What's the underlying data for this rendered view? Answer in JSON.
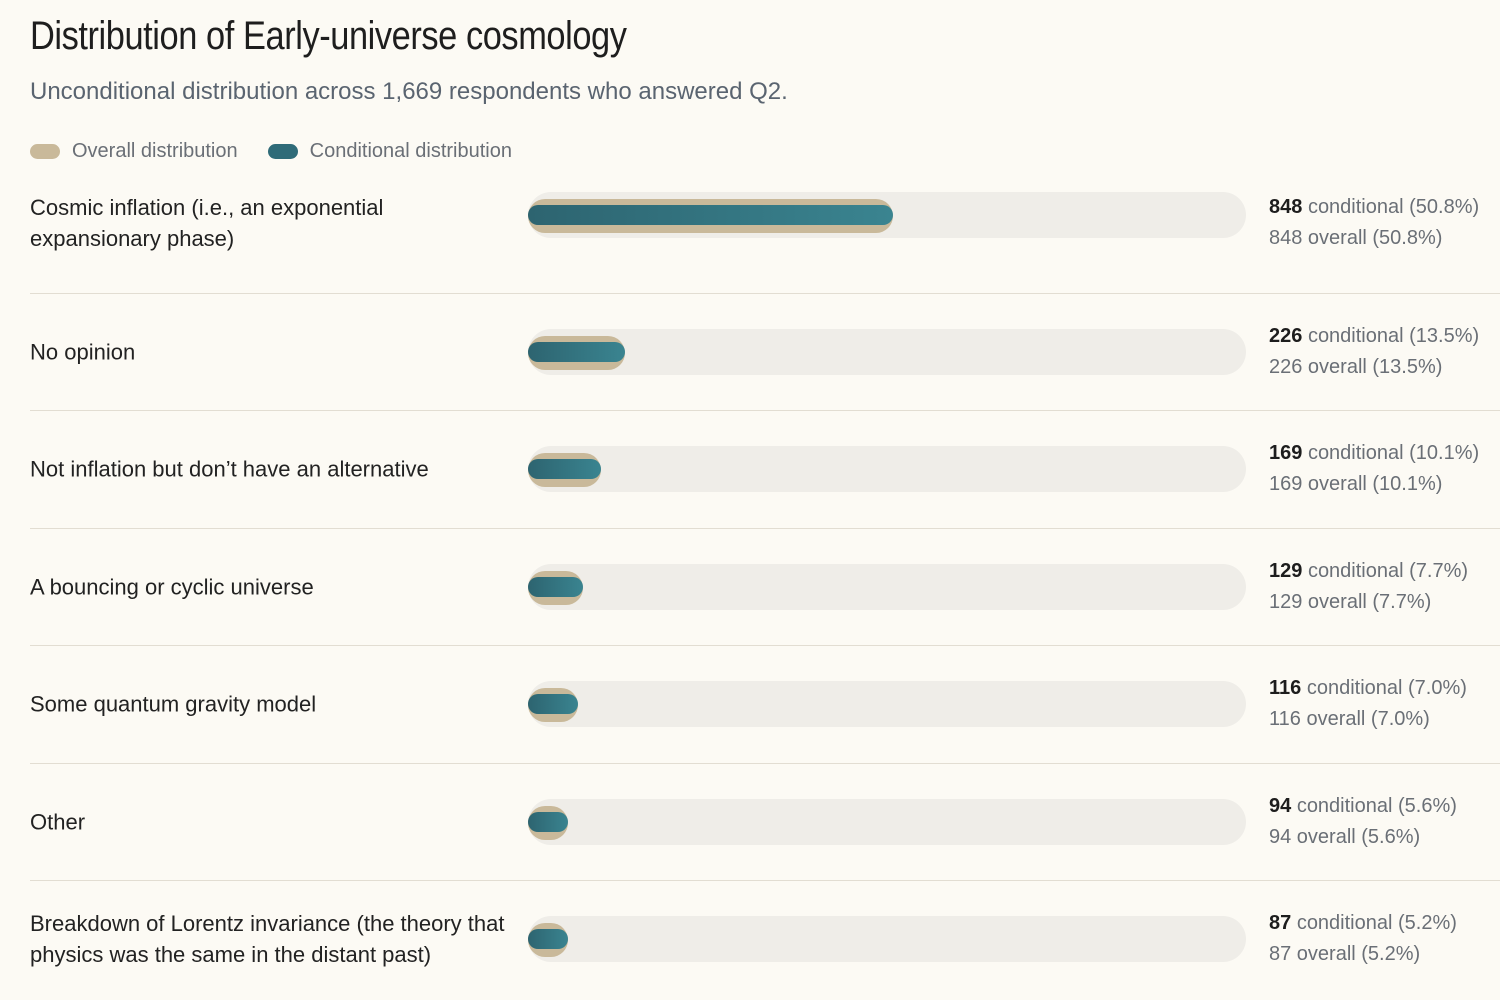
{
  "header": {
    "title": "Distribution of Early-universe cosmology",
    "subtitle": "Unconditional distribution across 1,669 respondents who answered Q2."
  },
  "legend": {
    "overall": "Overall distribution",
    "conditional": "Conditional distribution"
  },
  "colors": {
    "overall": "#c9b99a",
    "conditional": "#2f6b78",
    "track": "#efede8"
  },
  "chart_data": {
    "type": "bar",
    "orientation": "horizontal",
    "title": "Distribution of Early-universe cosmology",
    "subtitle": "Unconditional distribution across 1,669 respondents who answered Q2.",
    "xlim": [
      0,
      100
    ],
    "categories": [
      "Cosmic inflation (i.e., an exponential expansionary phase)",
      "No opinion",
      "Not inflation but don’t have an alternative",
      "A bouncing or cyclic universe",
      "Some quantum gravity model",
      "Other",
      "Breakdown of Lorentz invariance (the theory that physics was the same in the distant past)"
    ],
    "series": [
      {
        "name": "Overall distribution",
        "values": [
          50.8,
          13.5,
          10.1,
          7.7,
          7.0,
          5.6,
          5.2
        ]
      },
      {
        "name": "Conditional distribution",
        "values": [
          50.8,
          13.5,
          10.1,
          7.7,
          7.0,
          5.6,
          5.2
        ]
      }
    ],
    "rows": [
      {
        "label": "Cosmic inflation (i.e., an exponential expansionary phase)",
        "count": "848",
        "cond_text": "conditional (50.8%)",
        "overall_text": "848 overall (50.8%)",
        "pct": 50.8
      },
      {
        "label": "No opinion",
        "count": "226",
        "cond_text": "conditional (13.5%)",
        "overall_text": "226 overall (13.5%)",
        "pct": 13.5
      },
      {
        "label": "Not inflation but don’t have an alternative",
        "count": "169",
        "cond_text": "conditional (10.1%)",
        "overall_text": "169 overall (10.1%)",
        "pct": 10.1
      },
      {
        "label": "A bouncing or cyclic universe",
        "count": "129",
        "cond_text": "conditional (7.7%)",
        "overall_text": "129 overall (7.7%)",
        "pct": 7.7
      },
      {
        "label": "Some quantum gravity model",
        "count": "116",
        "cond_text": "conditional (7.0%)",
        "overall_text": "116 overall (7.0%)",
        "pct": 7.0
      },
      {
        "label": "Other",
        "count": "94",
        "cond_text": "conditional (5.6%)",
        "overall_text": "94 overall (5.6%)",
        "pct": 5.6
      },
      {
        "label": "Breakdown of Lorentz invariance (the theory that physics was the same in the distant past)",
        "count": "87",
        "cond_text": "conditional (5.2%)",
        "overall_text": "87 overall (5.2%)",
        "pct": 5.2
      }
    ]
  }
}
